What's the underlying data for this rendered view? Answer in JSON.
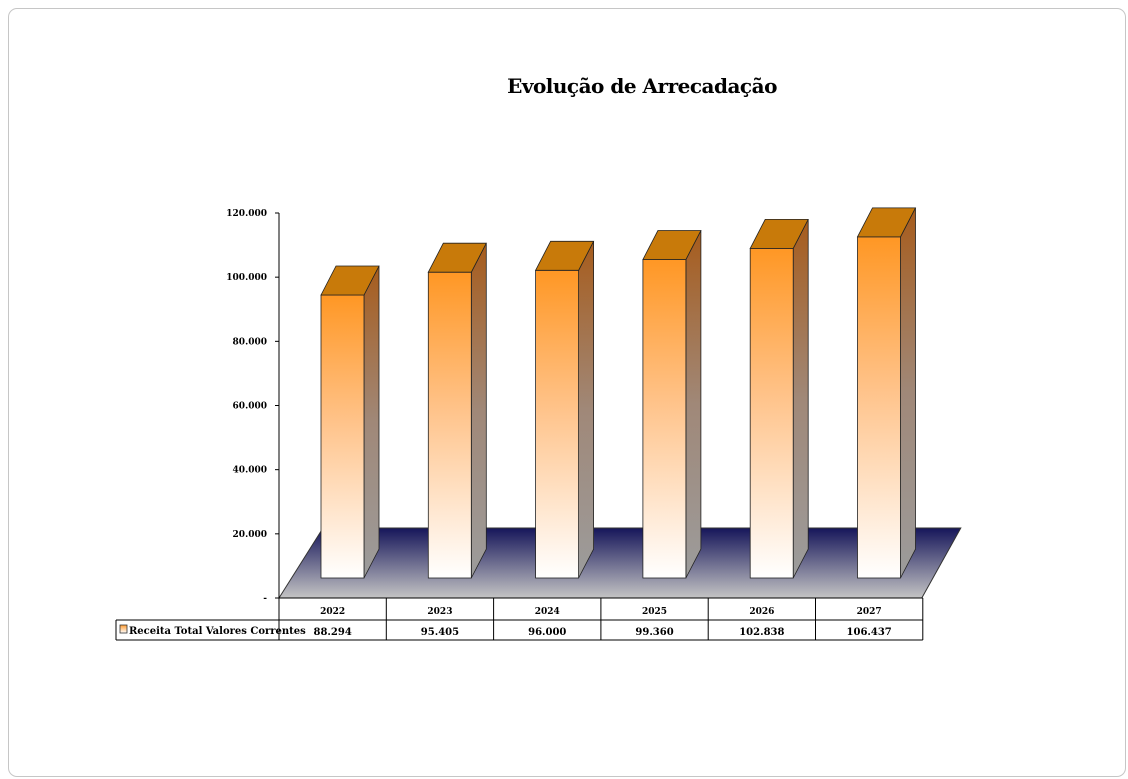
{
  "chart_data": {
    "type": "bar",
    "title": "Evolução de Arrecadação",
    "categories": [
      "2022",
      "2023",
      "2024",
      "2025",
      "2026",
      "2027"
    ],
    "series": [
      {
        "name": "Receita Total Valores Correntes",
        "values": [
          88294,
          95405,
          96000,
          99360,
          102838,
          106437
        ],
        "value_labels": [
          "88.294",
          "95.405",
          "96.000",
          "99.360",
          "102.838",
          "106.437"
        ]
      }
    ],
    "y_ticks": [
      {
        "value": 0,
        "label": "-"
      },
      {
        "value": 20000,
        "label": "20.000"
      },
      {
        "value": 40000,
        "label": "40.000"
      },
      {
        "value": 60000,
        "label": "60.000"
      },
      {
        "value": 80000,
        "label": "80.000"
      },
      {
        "value": 100000,
        "label": "100.000"
      },
      {
        "value": 120000,
        "label": "120.000"
      }
    ],
    "ylim": [
      0,
      120000
    ],
    "legend": "data-table",
    "colors": {
      "bar_top": "#ff9a2e",
      "bar_cap": "#c87a0a",
      "floor": "#1a1a5e"
    }
  }
}
